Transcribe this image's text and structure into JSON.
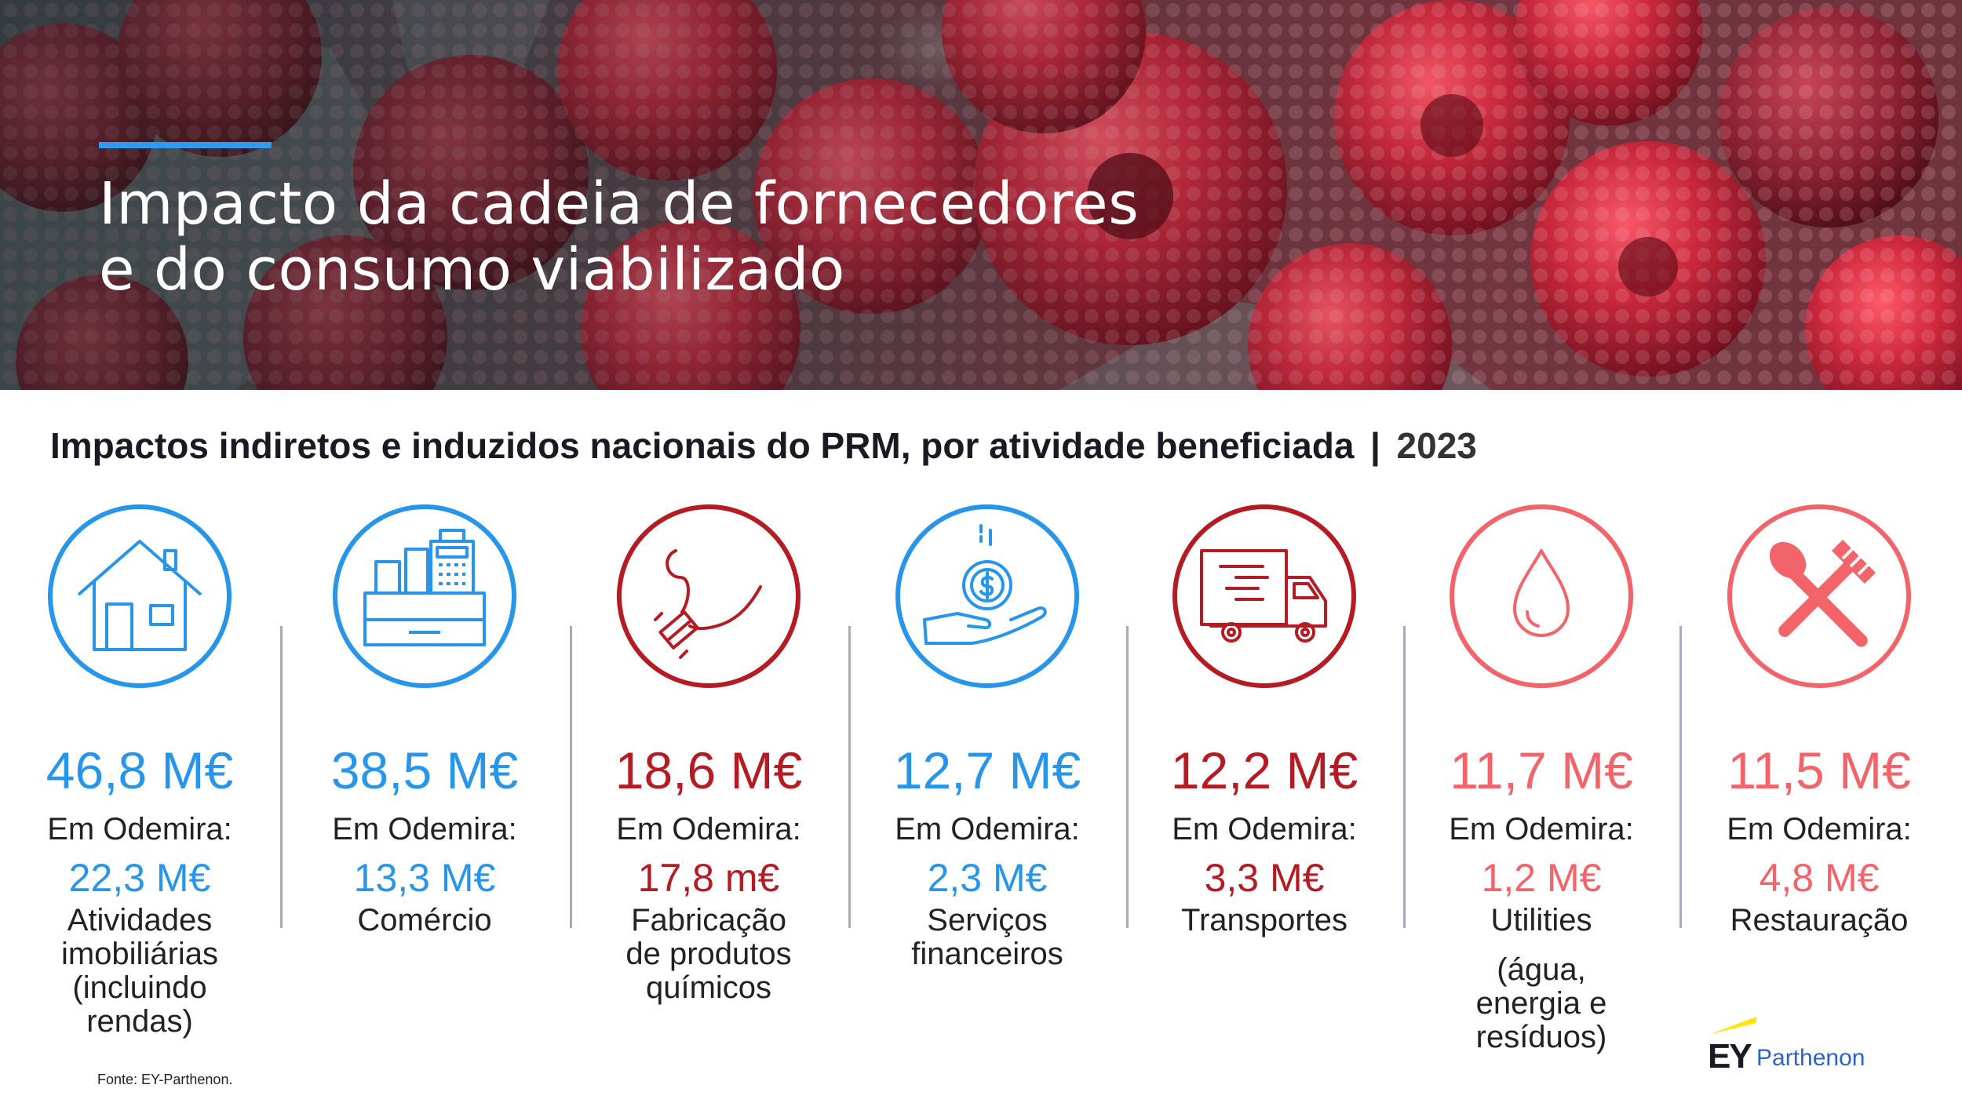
{
  "header": {
    "title_line1": "Impacto da cadeia de fornecedores",
    "title_line2": "e do consumo viabilizado"
  },
  "subtitle": {
    "main": "Impactos indiretos e induzidos nacionais do PRM, por atividade beneficiada",
    "separator": "|",
    "year": "2023"
  },
  "local_label": "Em Odemira:",
  "columns": [
    {
      "icon": "house-icon",
      "color": "#2796ea",
      "amount": "46,8 M€",
      "local_label": "Em Odemira:",
      "local_value": "22,3 M€",
      "activity": [
        "Atividades",
        "imobiliárias",
        "(incluindo",
        "rendas)"
      ]
    },
    {
      "icon": "cash-register-icon",
      "color": "#2796ea",
      "amount": "38,5 M€",
      "local_label": "Em Odemira:",
      "local_value": "13,3 M€",
      "activity": [
        "Comércio"
      ]
    },
    {
      "icon": "chemical-drop-icon",
      "color": "#b51b22",
      "amount": "18,6 M€",
      "local_label": "Em Odemira:",
      "local_value": "17,8 m€",
      "activity": [
        "Fabricação",
        "de produtos",
        "químicos"
      ]
    },
    {
      "icon": "hand-coin-icon",
      "color": "#2796ea",
      "amount": "12,7 M€",
      "local_label": "Em Odemira:",
      "local_value": "2,3 M€",
      "activity": [
        "Serviços",
        "financeiros"
      ]
    },
    {
      "icon": "delivery-truck-icon",
      "color": "#b51b22",
      "amount": "12,2 M€",
      "local_label": "Em Odemira:",
      "local_value": "3,3 M€",
      "activity": [
        "Transportes"
      ]
    },
    {
      "icon": "water-drop-icon",
      "color": "#f2646a",
      "amount": "11,7 M€",
      "local_label": "Em Odemira:",
      "local_value": "1,2 M€",
      "activity": [
        "Utilities"
      ],
      "activity_note": [
        "(água,",
        "energia e",
        "resíduos)"
      ]
    },
    {
      "icon": "fork-spoon-icon",
      "color": "#f2646a",
      "amount": "11,5 M€",
      "local_label": "Em Odemira:",
      "local_value": "4,8 M€",
      "activity": [
        "Restauração"
      ]
    }
  ],
  "footer": {
    "source": "Fonte: EY-Parthenon.",
    "logo_ey": "EY",
    "logo_parthenon": "Parthenon"
  }
}
